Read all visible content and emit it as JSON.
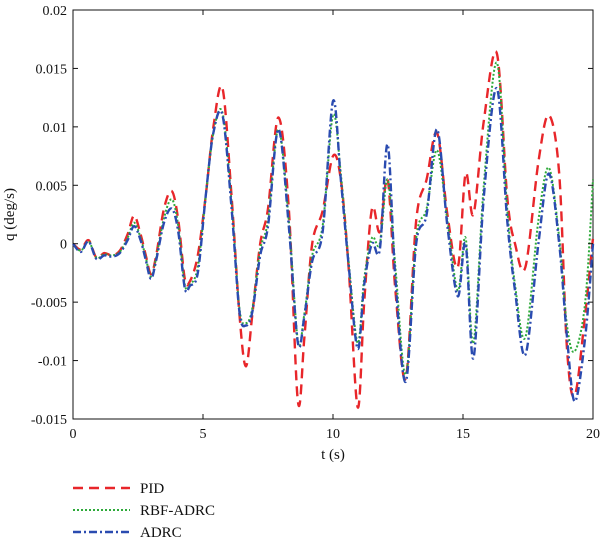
{
  "chart_data": {
    "type": "line",
    "title": "",
    "xlabel": "t (s)",
    "ylabel": "q (deg/s)",
    "xlim": [
      0,
      20
    ],
    "ylim": [
      -0.015,
      0.02
    ],
    "xticks": [
      0,
      5,
      10,
      15,
      20
    ],
    "xtick_labels": [
      "0",
      "5",
      "10",
      "15",
      "20"
    ],
    "yticks": [
      -0.015,
      -0.01,
      -0.005,
      0,
      0.005,
      0.01,
      0.015,
      0.02
    ],
    "ytick_labels": [
      "-0.015",
      "-0.01",
      "-0.005",
      "0",
      "0.005",
      "0.01",
      "0.015",
      "0.02"
    ],
    "grid": false,
    "legend_position": "below-left",
    "series": [
      {
        "name": "PID",
        "color": "#e8262a",
        "style": "dashed",
        "x": [
          0,
          0.3,
          0.6,
          0.9,
          1.2,
          1.5,
          1.8,
          2.1,
          2.35,
          2.6,
          2.8,
          3.0,
          3.2,
          3.5,
          3.8,
          4.05,
          4.3,
          4.5,
          4.8,
          5.1,
          5.4,
          5.75,
          6.1,
          6.4,
          6.65,
          6.9,
          7.2,
          7.5,
          7.9,
          8.3,
          8.65,
          8.9,
          9.2,
          9.6,
          10.0,
          10.3,
          10.6,
          10.95,
          11.2,
          11.5,
          11.8,
          12.1,
          12.4,
          12.8,
          13.2,
          13.6,
          14.0,
          14.4,
          14.8,
          15.1,
          15.4,
          15.8,
          16.3,
          16.7,
          17.0,
          17.4,
          17.9,
          18.3,
          18.7,
          19.0,
          19.3,
          19.7,
          20.0
        ],
        "y": [
          0,
          -0.0005,
          0.0003,
          -0.0012,
          -0.0008,
          -0.001,
          -0.0006,
          0.0008,
          0.0024,
          0.0008,
          -0.001,
          -0.0026,
          -0.001,
          0.003,
          0.0045,
          0.002,
          -0.003,
          -0.0032,
          -0.001,
          0.004,
          0.01,
          0.0133,
          0.004,
          -0.006,
          -0.0105,
          -0.006,
          0.0,
          0.003,
          0.0108,
          0.003,
          -0.0135,
          -0.008,
          0.0,
          0.0028,
          0.0075,
          0.0055,
          -0.002,
          -0.014,
          -0.005,
          0.003,
          0.001,
          0.0055,
          -0.004,
          -0.0115,
          0.002,
          0.0055,
          0.0095,
          0.0025,
          -0.002,
          0.006,
          0.0025,
          0.0105,
          0.0163,
          0.004,
          0.0,
          -0.002,
          0.007,
          0.011,
          0.006,
          -0.009,
          -0.013,
          -0.006,
          0.0005
        ]
      },
      {
        "name": "RBF-ADRC",
        "color": "#2eaa3a",
        "style": "dotted",
        "x": [
          0,
          0.3,
          0.6,
          0.9,
          1.2,
          1.5,
          1.8,
          2.1,
          2.35,
          2.6,
          2.8,
          3.0,
          3.2,
          3.5,
          3.8,
          4.05,
          4.3,
          4.5,
          4.8,
          5.1,
          5.4,
          5.75,
          6.1,
          6.4,
          6.65,
          6.9,
          7.2,
          7.5,
          7.9,
          8.3,
          8.65,
          8.9,
          9.2,
          9.6,
          10.0,
          10.3,
          10.6,
          10.95,
          11.2,
          11.5,
          11.8,
          12.1,
          12.4,
          12.8,
          13.2,
          13.6,
          14.0,
          14.4,
          14.8,
          15.1,
          15.4,
          15.8,
          16.3,
          16.7,
          17.0,
          17.4,
          17.9,
          18.3,
          18.7,
          19.0,
          19.3,
          19.7,
          20.0
        ],
        "y": [
          0,
          -0.0006,
          0.0002,
          -0.0012,
          -0.0009,
          -0.001,
          -0.0007,
          0.0005,
          0.0018,
          0.0005,
          -0.0012,
          -0.0028,
          -0.0012,
          0.0022,
          0.0038,
          0.0015,
          -0.0035,
          -0.0035,
          -0.002,
          0.004,
          0.0095,
          0.0112,
          0.0035,
          -0.0055,
          -0.0068,
          -0.0055,
          -0.0005,
          0.002,
          0.0098,
          0.002,
          -0.0083,
          -0.006,
          -0.001,
          0.0015,
          0.011,
          0.006,
          -0.0015,
          -0.0085,
          -0.003,
          0.0005,
          0.0,
          0.0055,
          -0.002,
          -0.0112,
          0.0005,
          0.003,
          0.008,
          0.002,
          -0.004,
          0.0005,
          -0.0085,
          0.005,
          0.0155,
          0.003,
          -0.0035,
          -0.008,
          0.002,
          0.0065,
          0.0005,
          -0.007,
          -0.0092,
          -0.005,
          0.0055
        ]
      },
      {
        "name": "ADRC",
        "color": "#2a4bb0",
        "style": "dashdot",
        "x": [
          0,
          0.3,
          0.6,
          0.9,
          1.2,
          1.5,
          1.8,
          2.1,
          2.35,
          2.6,
          2.8,
          3.0,
          3.2,
          3.5,
          3.8,
          4.05,
          4.3,
          4.5,
          4.8,
          5.1,
          5.4,
          5.75,
          6.1,
          6.4,
          6.65,
          6.9,
          7.2,
          7.5,
          7.9,
          8.3,
          8.65,
          8.9,
          9.2,
          9.6,
          10.0,
          10.3,
          10.6,
          10.95,
          11.2,
          11.5,
          11.8,
          12.1,
          12.4,
          12.8,
          13.2,
          13.6,
          14.0,
          14.4,
          14.8,
          15.1,
          15.4,
          15.8,
          16.3,
          16.7,
          17.0,
          17.4,
          17.9,
          18.3,
          18.7,
          19.0,
          19.3,
          19.7,
          20.0
        ],
        "y": [
          0,
          -0.0007,
          0.0002,
          -0.0013,
          -0.001,
          -0.0011,
          -0.0008,
          0.0003,
          0.0015,
          0.0003,
          -0.0014,
          -0.003,
          -0.0014,
          0.0018,
          0.003,
          0.001,
          -0.0038,
          -0.0036,
          -0.0025,
          0.004,
          0.0095,
          0.011,
          0.003,
          -0.0058,
          -0.007,
          -0.0058,
          -0.001,
          0.0015,
          0.0098,
          0.0015,
          -0.0085,
          -0.0062,
          -0.0015,
          0.001,
          0.0122,
          0.0055,
          -0.0018,
          -0.009,
          -0.0035,
          0.0,
          -0.0005,
          0.0085,
          -0.003,
          -0.0118,
          0.0,
          0.0025,
          0.0098,
          0.0015,
          -0.0045,
          0.0,
          -0.0098,
          0.004,
          0.0133,
          0.002,
          -0.004,
          -0.0095,
          0.0,
          0.006,
          0.0,
          -0.008,
          -0.0135,
          -0.008,
          0.0
        ]
      }
    ]
  }
}
